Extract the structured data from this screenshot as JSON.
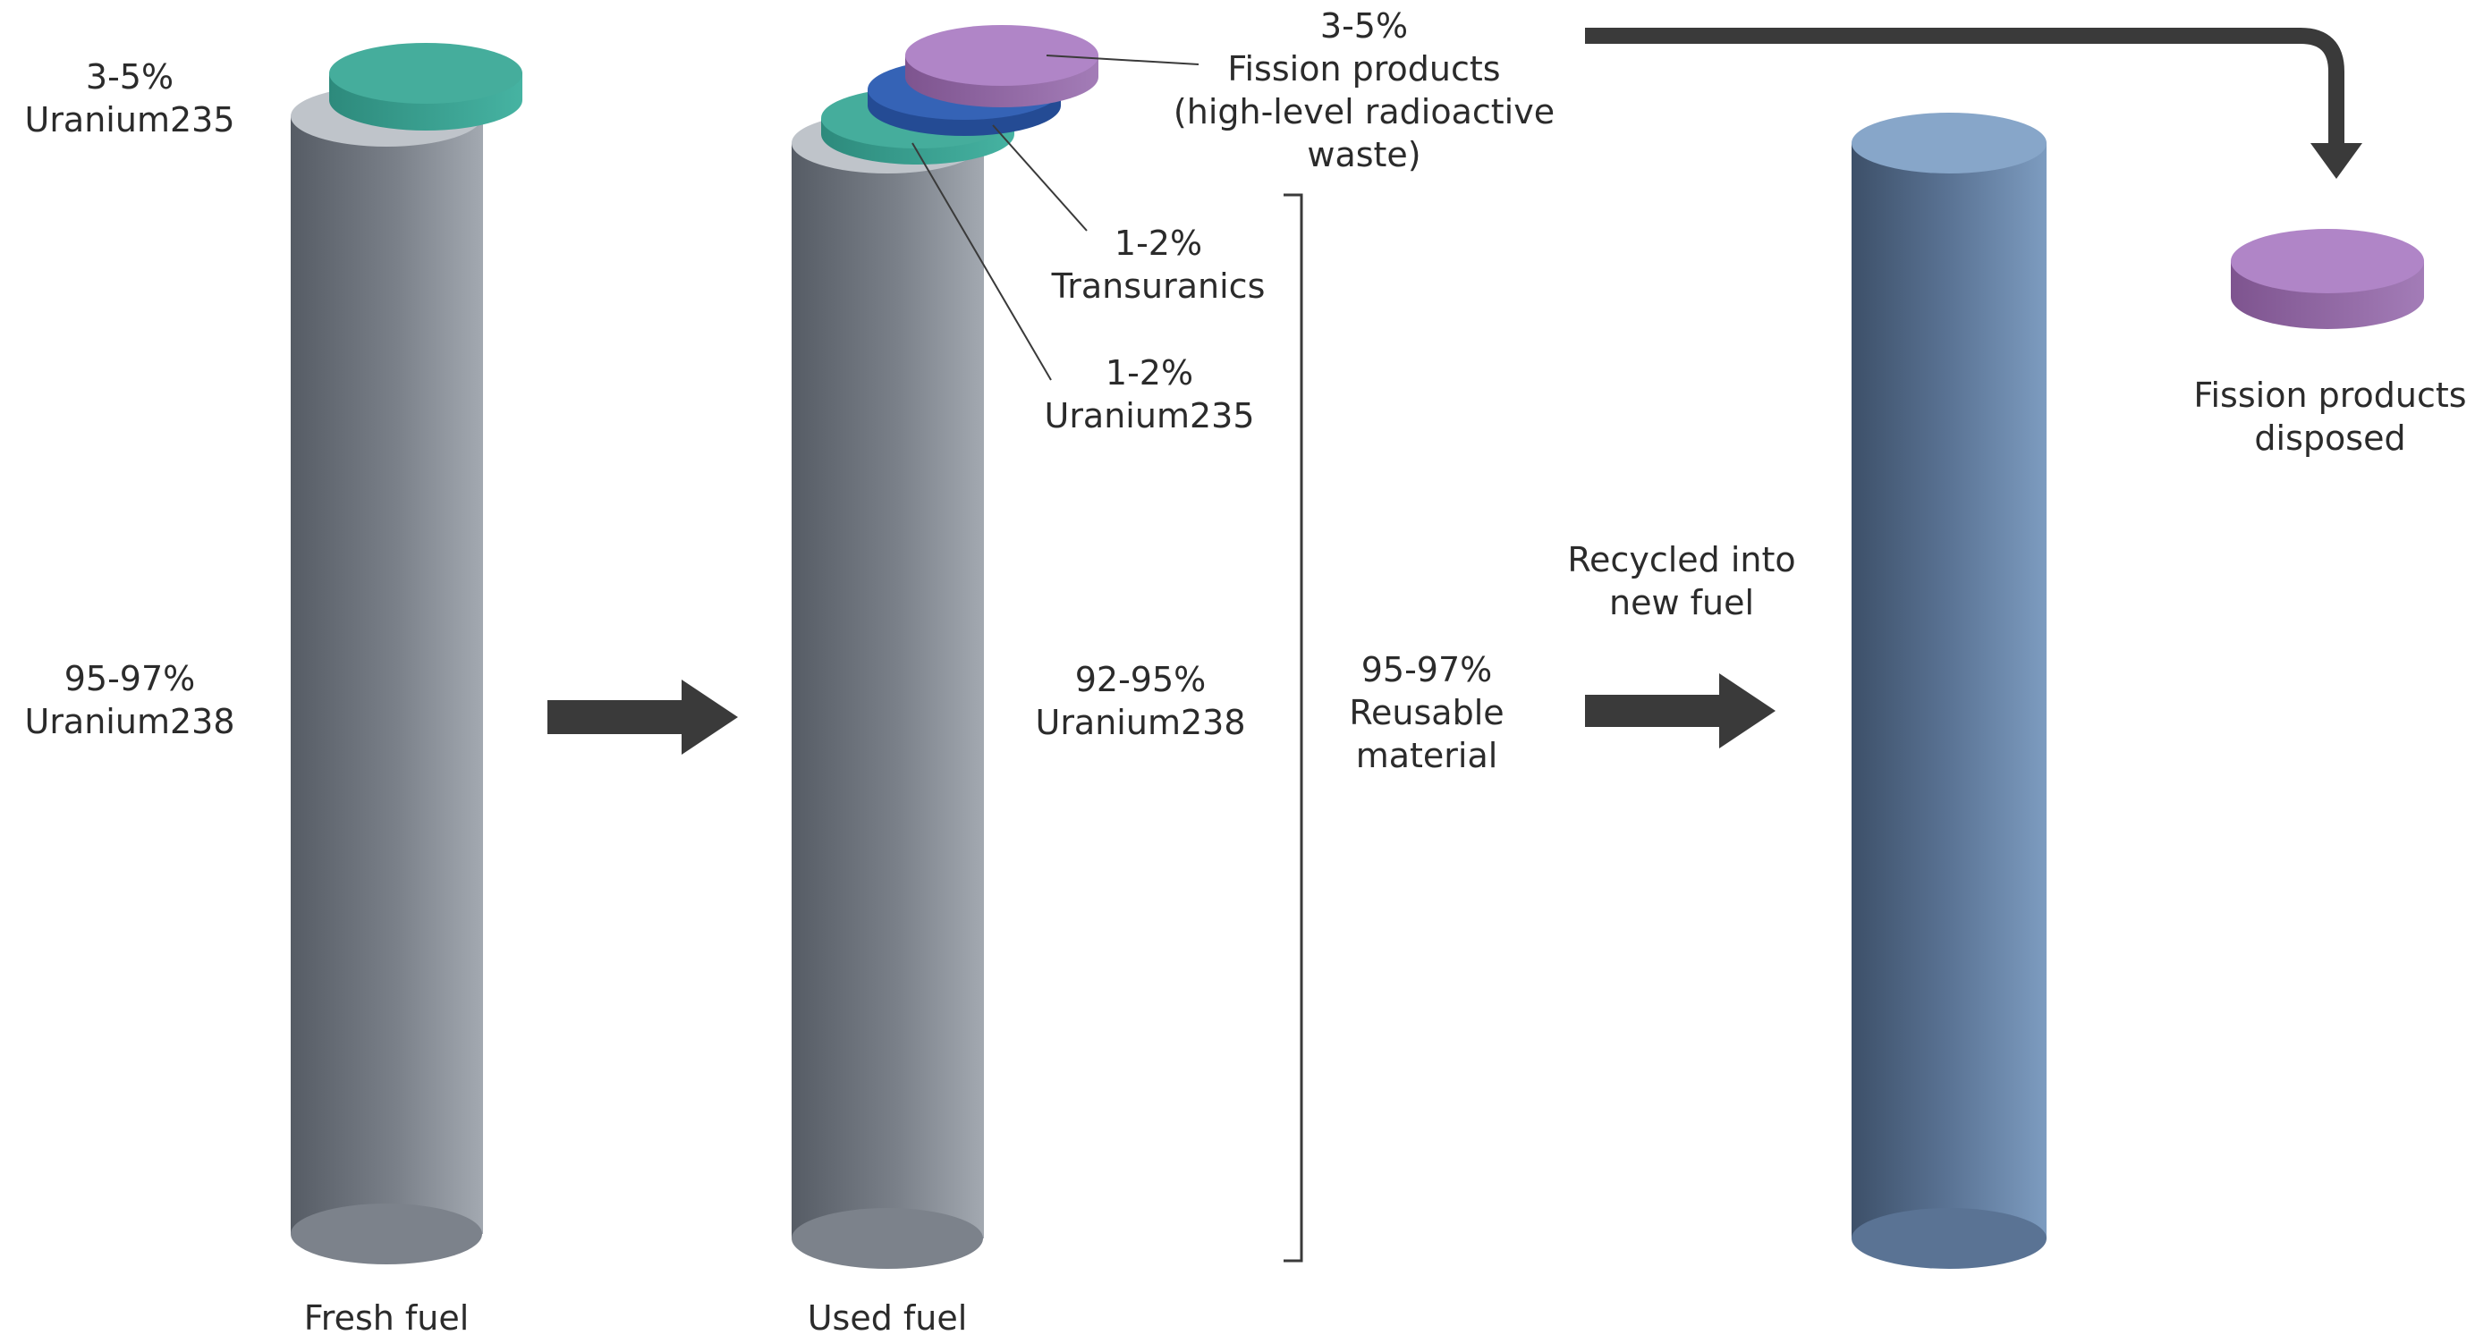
{
  "fresh_fuel": {
    "label": "Fresh fuel",
    "u235": {
      "pct": "3-5%",
      "name": "Uranium235"
    },
    "u238": {
      "pct": "95-97%",
      "name": "Uranium238"
    }
  },
  "used_fuel": {
    "label": "Used fuel",
    "fission": {
      "pct": "3-5%",
      "line1": "Fission products",
      "line2": "(high-level radioactive",
      "line3": "waste)"
    },
    "transuranics": {
      "pct": "1-2%",
      "name": "Transuranics"
    },
    "u235": {
      "pct": "1-2%",
      "name": "Uranium235"
    },
    "u238": {
      "pct": "92-95%",
      "name": "Uranium238"
    }
  },
  "reusable": {
    "pct": "95-97%",
    "line1": "Reusable",
    "line2": "material"
  },
  "recycled": {
    "line1": "Recycled into",
    "line2": "new fuel"
  },
  "disposed": {
    "line1": "Fission products",
    "line2": "disposed"
  },
  "colors": {
    "teal": "#3fa898",
    "blue": "#2f5fb0",
    "purple": "#a77bc0",
    "grey_rod": "#6e747d",
    "blue_rod": "#5a7ea6",
    "arrow": "#3a3a3a"
  }
}
